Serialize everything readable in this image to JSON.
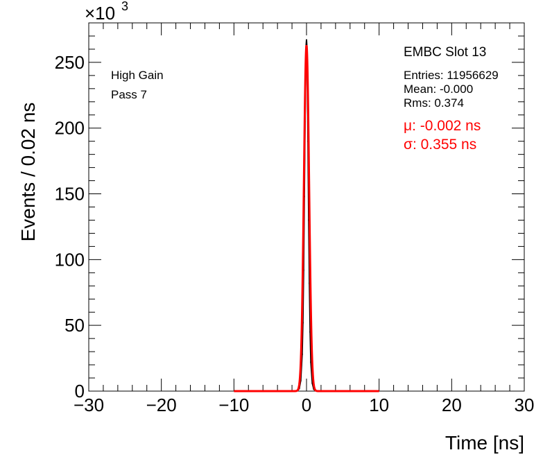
{
  "chart_data": {
    "type": "line",
    "title": "",
    "xlabel": "Time [ns]",
    "ylabel": "Events / 0.02 ns",
    "y_multiplier_label": "×10",
    "y_multiplier_exponent": "3",
    "xlim": [
      -30,
      30
    ],
    "ylim": [
      0,
      280
    ],
    "x_ticks": [
      -30,
      -20,
      -10,
      0,
      10,
      20,
      30
    ],
    "x_tick_labels": [
      "−30",
      "−20",
      "−10",
      "0",
      "10",
      "20",
      "30"
    ],
    "y_ticks": [
      0,
      50,
      100,
      150,
      200,
      250
    ],
    "y_tick_labels": [
      "0",
      "50",
      "100",
      "150",
      "200",
      "250"
    ],
    "grid": false,
    "annotations_left": [
      "High Gain",
      "Pass 7"
    ],
    "stats_title": "EMBC Slot 13",
    "stats_lines": [
      "Entries: 11956629",
      "Mean: -0.000",
      "Rms: 0.374"
    ],
    "fit_lines": [
      "μ: -0.002 ns",
      "σ: 0.355 ns"
    ],
    "series": [
      {
        "kind": "histogram",
        "color": "#000000",
        "x": [
          -1.2,
          -1.0,
          -0.8,
          -0.6,
          -0.5,
          -0.4,
          -0.3,
          -0.2,
          -0.1,
          -0.05,
          0.0,
          0.05,
          0.1,
          0.2,
          0.3,
          0.4,
          0.5,
          0.6,
          0.8,
          1.0,
          1.2
        ],
        "values": [
          0.5,
          2,
          8,
          28,
          52,
          92,
          148,
          205,
          250,
          263,
          267,
          262,
          240,
          190,
          130,
          82,
          45,
          22,
          6,
          1.5,
          0.3
        ]
      },
      {
        "kind": "gaussian-fit",
        "color": "#ff0000",
        "mu": -0.002,
        "sigma": 0.355,
        "amplitude": 263,
        "x_range": [
          -10,
          10
        ]
      }
    ]
  }
}
